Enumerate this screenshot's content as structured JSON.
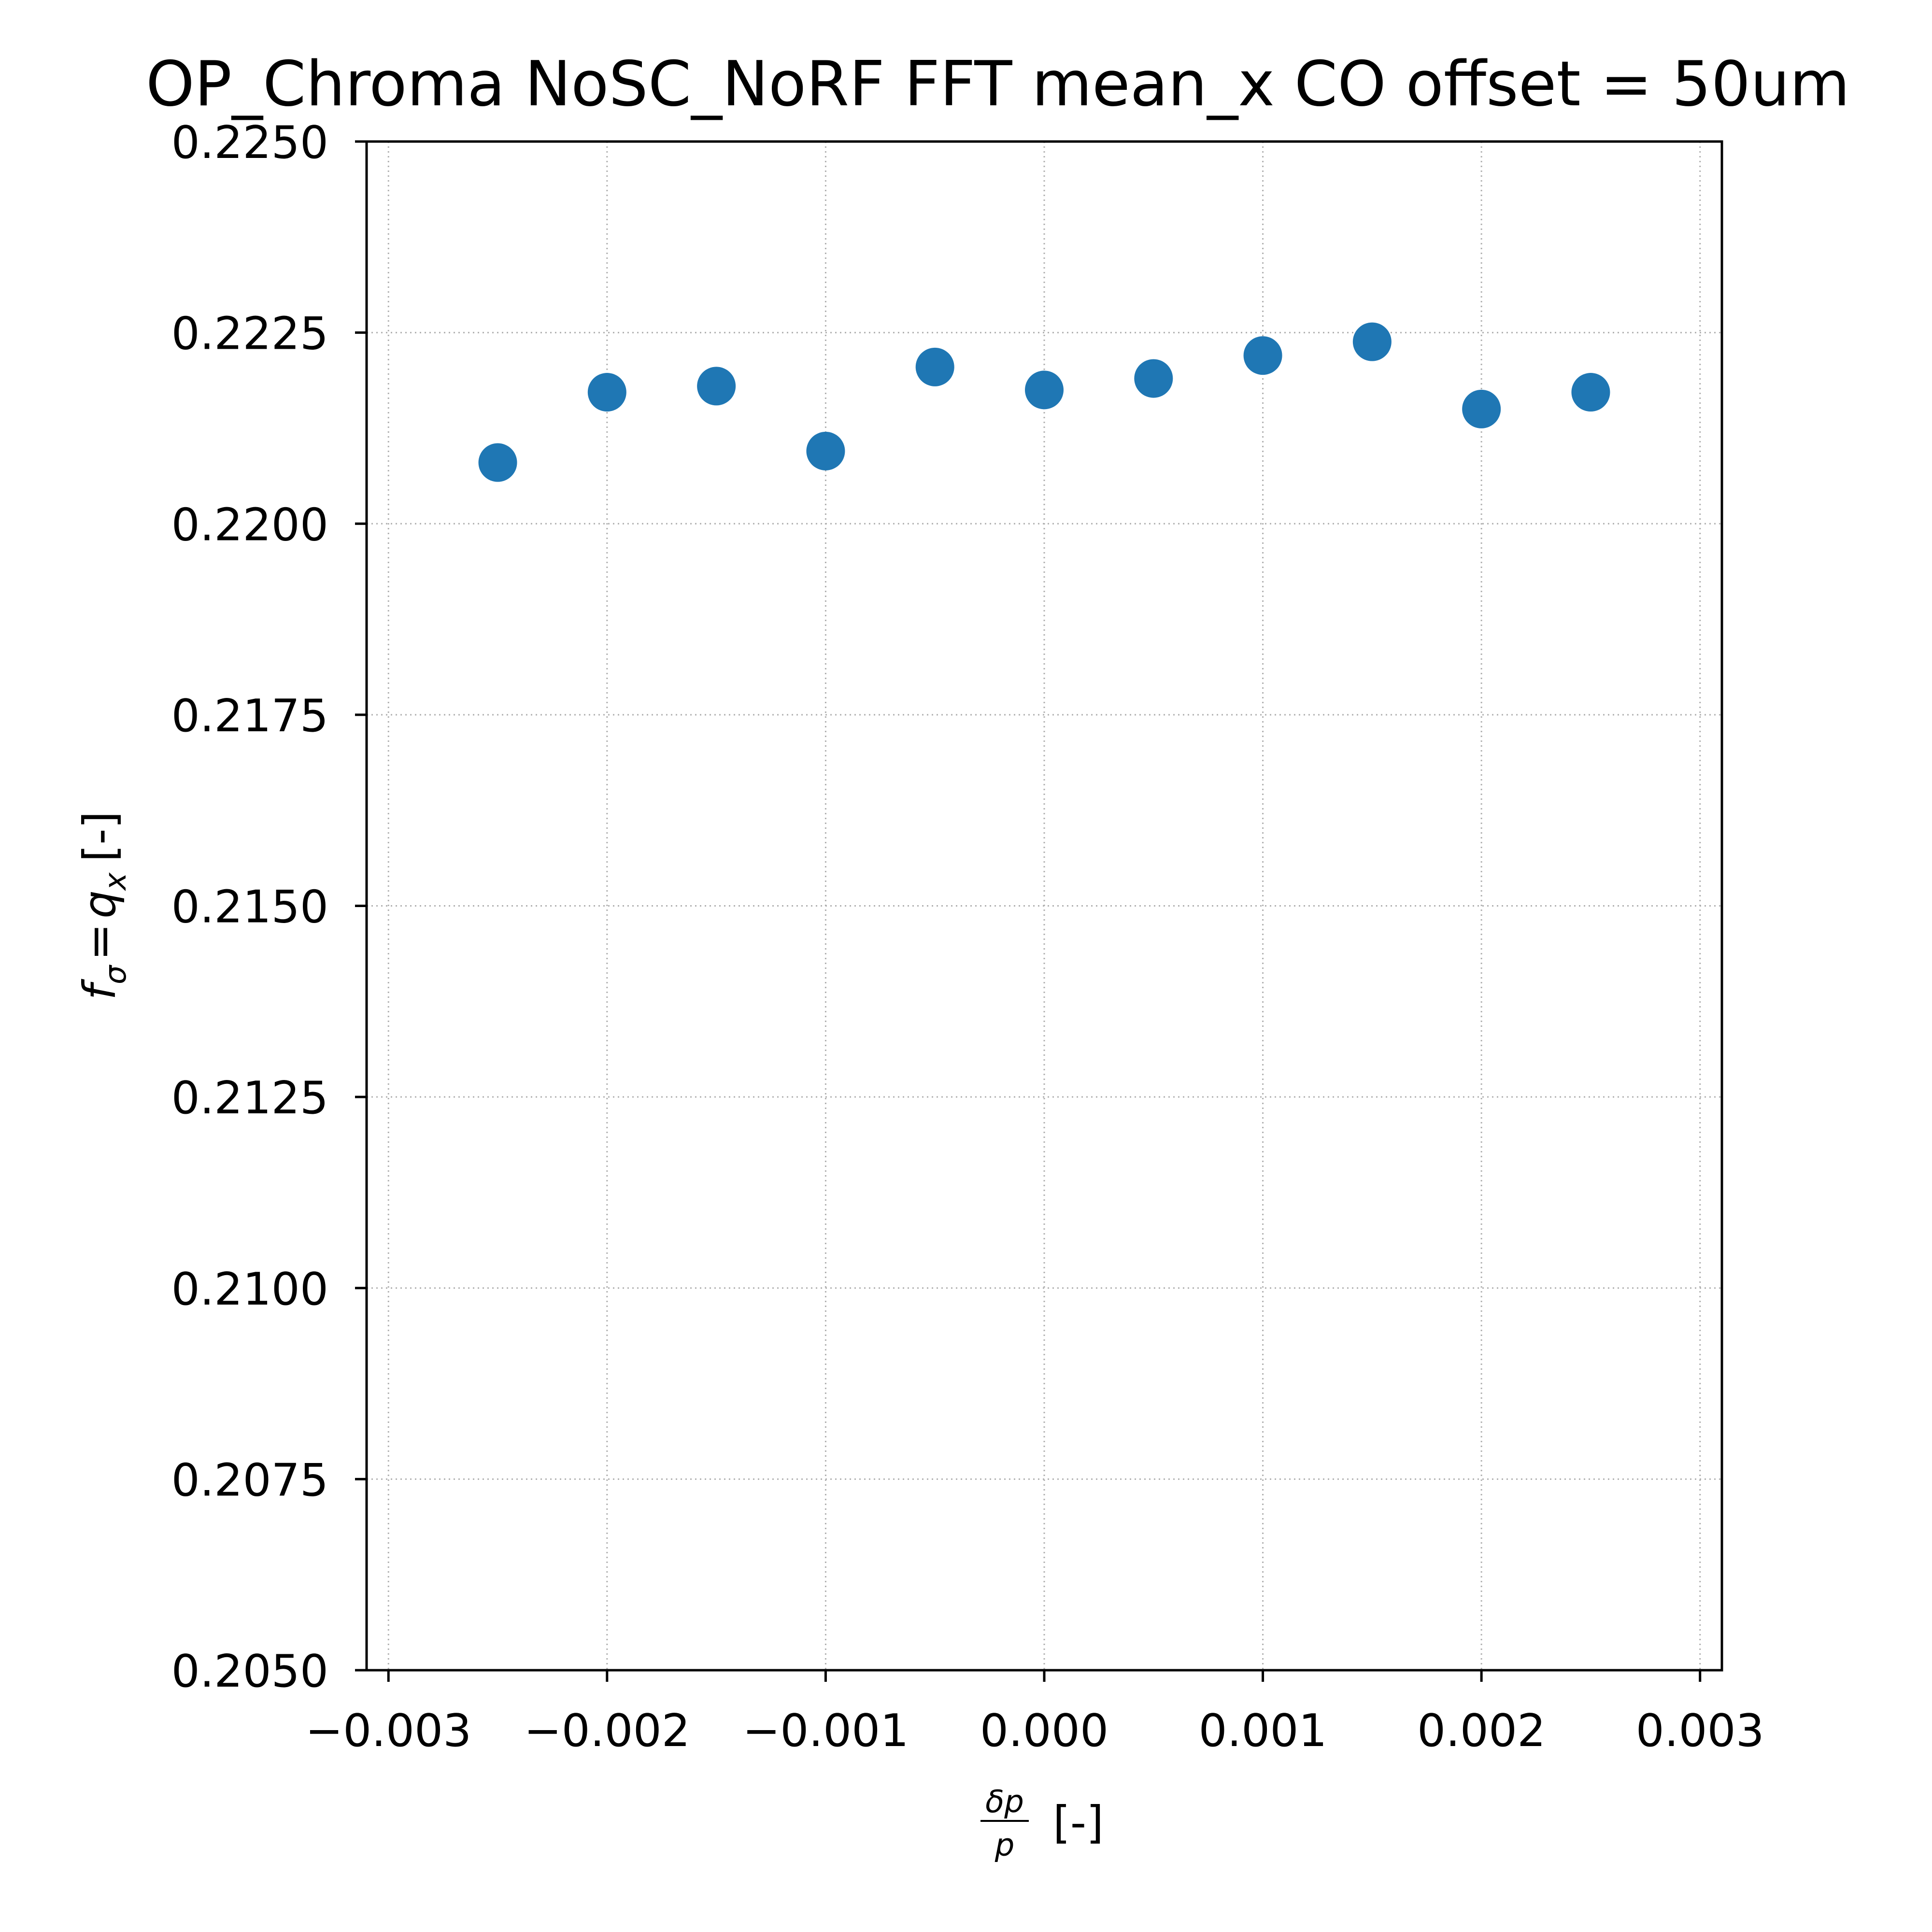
{
  "chart_data": {
    "type": "scatter",
    "title": "OP_Chroma NoSC_NoRF FFT mean_x  CO offset = 50um",
    "xlabel": {
      "fraction_numerator": "δp",
      "fraction_denominator": "p",
      "unit": "[-]"
    },
    "ylabel": {
      "f": "f",
      "f_sub": "σ",
      "equals": "=",
      "q": "q",
      "q_sub": "x",
      "unit": "[-]"
    },
    "xlim": [
      -0.0031,
      0.0031
    ],
    "ylim": [
      0.205,
      0.225
    ],
    "xticks": [
      -0.003,
      -0.002,
      -0.001,
      0.0,
      0.001,
      0.002,
      0.003
    ],
    "xtick_labels": [
      "−0.003",
      "−0.002",
      "−0.001",
      "0.000",
      "0.001",
      "0.002",
      "0.003"
    ],
    "yticks": [
      0.205,
      0.2075,
      0.21,
      0.2125,
      0.215,
      0.2175,
      0.22,
      0.2225,
      0.225
    ],
    "ytick_labels": [
      "0.2050",
      "0.2075",
      "0.2100",
      "0.2125",
      "0.2150",
      "0.2175",
      "0.2200",
      "0.2225",
      "0.2250"
    ],
    "grid": true,
    "series": [
      {
        "color": "#1f77b4",
        "x": [
          -0.0025,
          -0.002,
          -0.0015,
          -0.001,
          -0.0005,
          0.0,
          0.0005,
          0.001,
          0.0015,
          0.002,
          0.0025
        ],
        "y": [
          0.2208,
          0.22172,
          0.2218,
          0.22095,
          0.22205,
          0.22175,
          0.2219,
          0.2222,
          0.22238,
          0.2215,
          0.22172
        ]
      }
    ]
  }
}
